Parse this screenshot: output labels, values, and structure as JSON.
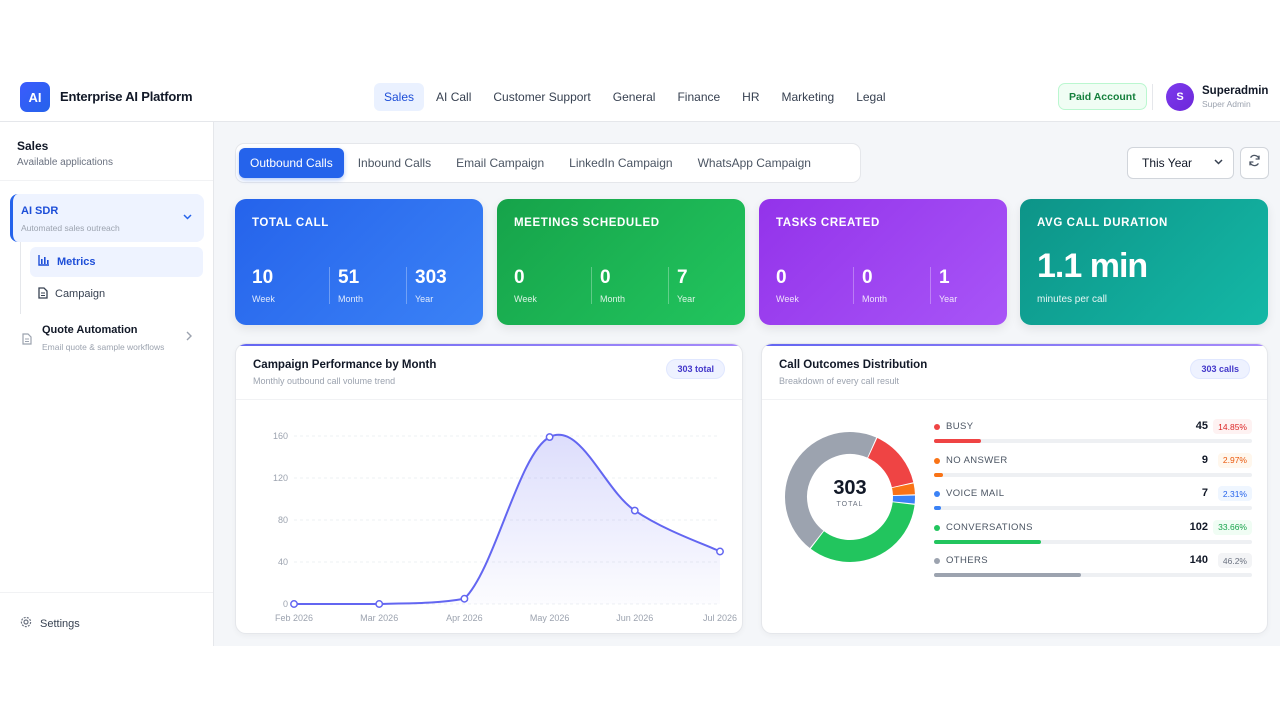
{
  "header": {
    "logo_text": "AI",
    "app_title": "Enterprise AI Platform",
    "nav": [
      {
        "label": "Sales",
        "active": true
      },
      {
        "label": "AI Call",
        "active": false
      },
      {
        "label": "Customer Support",
        "active": false
      },
      {
        "label": "General",
        "active": false
      },
      {
        "label": "Finance",
        "active": false
      },
      {
        "label": "HR",
        "active": false
      },
      {
        "label": "Marketing",
        "active": false
      },
      {
        "label": "Legal",
        "active": false
      }
    ],
    "account_badge": "Paid Account",
    "user": {
      "initial": "S",
      "name": "Superadmin",
      "role": "Super Admin"
    }
  },
  "sidebar": {
    "title": "Sales",
    "subtitle": "Available applications",
    "apps": [
      {
        "title": "AI SDR",
        "subtitle": "Automated sales outreach",
        "expanded": true,
        "children": [
          {
            "label": "Metrics",
            "icon": "bar-chart-icon",
            "active": true
          },
          {
            "label": "Campaign",
            "icon": "document-icon",
            "active": false
          }
        ]
      },
      {
        "title": "Quote Automation",
        "subtitle": "Email quote & sample workflows",
        "expanded": false
      }
    ],
    "settings_label": "Settings"
  },
  "tabs": [
    {
      "label": "Outbound Calls",
      "active": true
    },
    {
      "label": "Inbound Calls",
      "active": false
    },
    {
      "label": "Email Campaign",
      "active": false
    },
    {
      "label": "LinkedIn Campaign",
      "active": false
    },
    {
      "label": "WhatsApp Campaign",
      "active": false
    }
  ],
  "period": {
    "selected": "This Year"
  },
  "stats": [
    {
      "label": "TOTAL CALL",
      "values": [
        {
          "num": "10",
          "unit": "Week"
        },
        {
          "num": "51",
          "unit": "Month"
        },
        {
          "num": "303",
          "unit": "Year"
        }
      ]
    },
    {
      "label": "MEETINGS SCHEDULED",
      "values": [
        {
          "num": "0",
          "unit": "Week"
        },
        {
          "num": "0",
          "unit": "Month"
        },
        {
          "num": "7",
          "unit": "Year"
        }
      ]
    },
    {
      "label": "TASKS CREATED",
      "values": [
        {
          "num": "0",
          "unit": "Week"
        },
        {
          "num": "0",
          "unit": "Month"
        },
        {
          "num": "1",
          "unit": "Year"
        }
      ]
    },
    {
      "label": "AVG CALL DURATION",
      "big": "1.1 min",
      "sub": "minutes per call"
    }
  ],
  "campaign_panel": {
    "title": "Campaign Performance by Month",
    "subtitle": "Monthly outbound call volume trend",
    "pill": "303 total"
  },
  "outcomes_panel": {
    "title": "Call Outcomes Distribution",
    "subtitle": "Breakdown of every call result",
    "pill": "303 calls",
    "center_value": "303",
    "center_label": "TOTAL"
  },
  "chart_data": [
    {
      "type": "area",
      "categories": [
        "Feb 2026",
        "Mar 2026",
        "Apr 2026",
        "May 2026",
        "Jun 2026",
        "Jul 2026"
      ],
      "values": [
        0,
        0,
        5,
        159,
        89,
        50
      ],
      "yticks": [
        0,
        40,
        80,
        120,
        160
      ],
      "ylim": [
        0,
        160
      ],
      "color": "#6366f1"
    },
    {
      "type": "pie",
      "categories": [
        "BUSY",
        "NO ANSWER",
        "VOICE MAIL",
        "CONVERSATIONS",
        "OTHERS"
      ],
      "values": [
        45,
        9,
        7,
        102,
        140
      ],
      "percent_labels": [
        "14.85%",
        "2.97%",
        "2.31%",
        "33.66%",
        "46.2%"
      ],
      "colors": [
        "#ef4444",
        "#f97316",
        "#3b82f6",
        "#22c55e",
        "#9ca3af"
      ],
      "pct_bg": [
        "#fef2f2",
        "#fff7ed",
        "#eff6ff",
        "#f0fdf4",
        "#f3f4f6"
      ],
      "pct_fg": [
        "#dc2626",
        "#ea580c",
        "#2563eb",
        "#16a34a",
        "#6b7280"
      ],
      "total": 303
    }
  ]
}
